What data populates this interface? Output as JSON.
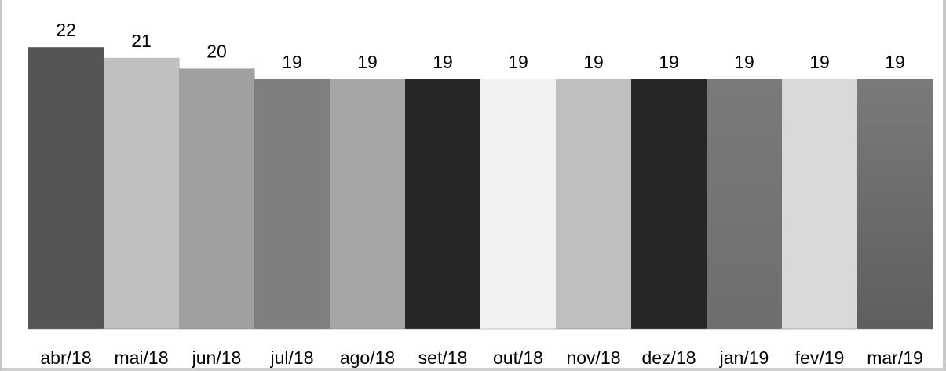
{
  "chart_data": {
    "type": "bar",
    "categories": [
      "abr/18",
      "mai/18",
      "jun/18",
      "jul/18",
      "ago/18",
      "set/18",
      "out/18",
      "nov/18",
      "dez/18",
      "jan/19",
      "fev/19",
      "mar/19"
    ],
    "values": [
      22,
      21,
      20,
      19,
      19,
      19,
      19,
      19,
      19,
      19,
      19,
      19
    ],
    "data_labels": [
      "22",
      "21",
      "20",
      "19",
      "19",
      "19",
      "19",
      "19",
      "19",
      "19",
      "19",
      "19"
    ],
    "colors": [
      "#555555",
      "#c0c0c0",
      "#a0a0a0",
      "#7f7f7f",
      "#a6a6a6",
      "#262626",
      "#f2f2f2",
      "#bfbfbf",
      "#262626",
      "#6e6e6e",
      "#d9d9d9",
      "#5e5e5e"
    ],
    "gradient_bars": [
      9,
      11
    ],
    "axis_color": "#808080",
    "grid": false,
    "legend": "none",
    "title": "",
    "xlabel": "",
    "ylabel": "",
    "ylim": [
      0,
      22
    ]
  }
}
